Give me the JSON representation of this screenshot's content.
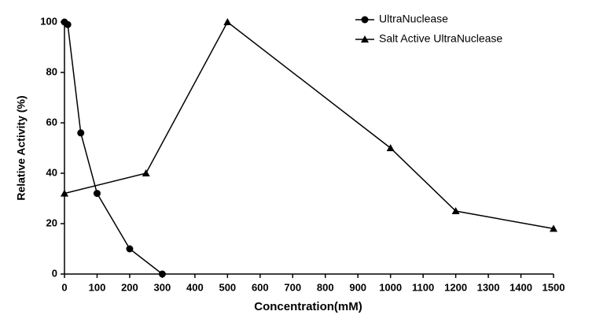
{
  "chart_data": {
    "type": "line",
    "x_label": "Concentration(mM)",
    "y_label": "Relative Activity (%)",
    "xlim": [
      0,
      1500
    ],
    "xticks": [
      0,
      100,
      200,
      300,
      400,
      500,
      600,
      700,
      800,
      900,
      1000,
      1100,
      1200,
      1300,
      1400,
      1500
    ],
    "ylim": [
      0,
      100
    ],
    "yticks": [
      0,
      20,
      40,
      60,
      80,
      100
    ],
    "legend": "top-right",
    "series": [
      {
        "name": "UltraNuclease",
        "color": "#000000",
        "marker": "circle",
        "x": [
          0,
          10,
          50,
          100,
          200,
          300
        ],
        "values": [
          100,
          99,
          56,
          32,
          10,
          0
        ]
      },
      {
        "name": "Salt Active UltraNuclease",
        "color": "#000000",
        "marker": "triangle",
        "x": [
          0,
          250,
          500,
          1000,
          1200,
          1500
        ],
        "values": [
          32,
          40,
          100,
          50,
          25,
          18
        ]
      }
    ]
  }
}
